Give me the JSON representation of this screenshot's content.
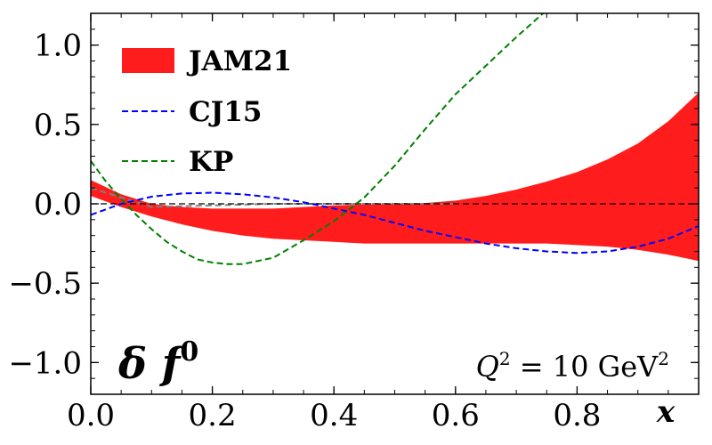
{
  "chart_data": {
    "type": "line",
    "xlabel": "x",
    "ylabel": "",
    "xlim": [
      0.0,
      1.0
    ],
    "ylim": [
      -1.2,
      1.2
    ],
    "xticks": [
      {
        "value": 0.0,
        "label": "0.0"
      },
      {
        "value": 0.2,
        "label": "0.2"
      },
      {
        "value": 0.4,
        "label": "0.4"
      },
      {
        "value": 0.6,
        "label": "0.6"
      },
      {
        "value": 0.8,
        "label": "0.8"
      }
    ],
    "yticks": [
      {
        "value": 1.0,
        "label": "1.0"
      },
      {
        "value": 0.5,
        "label": "0.5"
      },
      {
        "value": 0.0,
        "label": "0.0"
      },
      {
        "value": -0.5,
        "label": "−0.5"
      },
      {
        "value": -1.0,
        "label": "−1.0"
      }
    ],
    "grid": false,
    "legend_position": "top-left",
    "panel_label": {
      "base": "δ f",
      "superscript": "0"
    },
    "annotation": {
      "prefix": "Q",
      "sup1": "2",
      "middle": " = 10 GeV",
      "sup2": "2"
    },
    "zero_line": {
      "y": 0.0,
      "color": "#000000",
      "style": "dashed"
    },
    "series": [
      {
        "name": "JAM21",
        "kind": "band",
        "color": "#ff1c1c",
        "x": [
          0.0,
          0.05,
          0.1,
          0.15,
          0.2,
          0.25,
          0.3,
          0.35,
          0.4,
          0.45,
          0.5,
          0.55,
          0.6,
          0.65,
          0.7,
          0.75,
          0.8,
          0.85,
          0.9,
          0.95,
          1.0
        ],
        "upper": [
          0.15,
          0.06,
          0.0,
          -0.02,
          -0.03,
          -0.03,
          -0.03,
          -0.02,
          -0.01,
          -0.005,
          0.0,
          0.005,
          0.02,
          0.05,
          0.09,
          0.14,
          0.2,
          0.28,
          0.38,
          0.52,
          0.7
        ],
        "lower": [
          0.05,
          -0.02,
          -0.08,
          -0.13,
          -0.17,
          -0.2,
          -0.22,
          -0.23,
          -0.24,
          -0.25,
          -0.25,
          -0.25,
          -0.25,
          -0.25,
          -0.25,
          -0.25,
          -0.26,
          -0.27,
          -0.29,
          -0.32,
          -0.36
        ],
        "central_x": [
          0.0,
          0.1,
          0.2,
          0.3,
          0.4,
          0.45,
          0.5,
          0.6
        ],
        "central_y": [
          0.1,
          -0.02,
          -0.01,
          0.0,
          0.0,
          0.0,
          0.0,
          0.0
        ],
        "central_color": "#808080"
      },
      {
        "name": "CJ15",
        "kind": "dashed-line",
        "color": "#0000ff",
        "x": [
          0.0,
          0.05,
          0.1,
          0.15,
          0.2,
          0.25,
          0.3,
          0.35,
          0.4,
          0.45,
          0.5,
          0.55,
          0.6,
          0.65,
          0.7,
          0.75,
          0.8,
          0.85,
          0.9,
          0.95,
          1.0
        ],
        "y": [
          -0.07,
          0.0,
          0.045,
          0.065,
          0.07,
          0.06,
          0.04,
          0.01,
          -0.03,
          -0.07,
          -0.12,
          -0.17,
          -0.21,
          -0.25,
          -0.28,
          -0.3,
          -0.31,
          -0.3,
          -0.27,
          -0.22,
          -0.14
        ]
      },
      {
        "name": "KP",
        "kind": "dashed-line",
        "color": "#008000",
        "x": [
          0.0,
          0.025,
          0.05,
          0.075,
          0.1,
          0.125,
          0.15,
          0.175,
          0.2,
          0.225,
          0.25,
          0.3,
          0.35,
          0.4,
          0.45,
          0.5,
          0.55,
          0.6,
          0.65,
          0.7,
          0.75
        ],
        "y": [
          0.27,
          0.14,
          0.03,
          -0.07,
          -0.16,
          -0.24,
          -0.3,
          -0.35,
          -0.37,
          -0.38,
          -0.38,
          -0.34,
          -0.23,
          -0.11,
          0.04,
          0.24,
          0.47,
          0.69,
          0.87,
          1.05,
          1.22
        ]
      }
    ]
  }
}
